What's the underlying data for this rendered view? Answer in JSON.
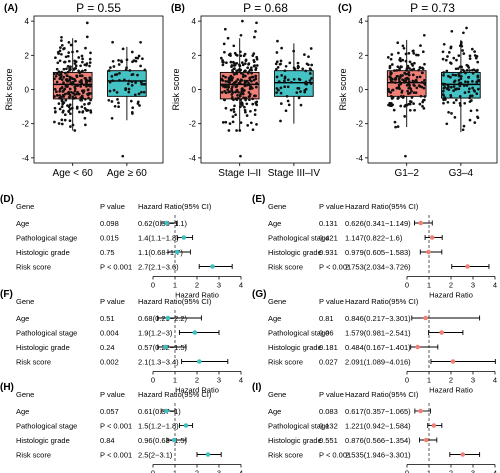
{
  "colors": {
    "box_left": "#F08077",
    "box_right": "#44C2C4",
    "forest_left": "#3FBFBF",
    "forest_right": "#F08077",
    "points": "#111111",
    "axis": "#000000",
    "refline": "#333333"
  },
  "chart_data": [
    {
      "panel": "A",
      "type": "box",
      "tag": "(A)",
      "title": "P = 0.55",
      "ylabel": "Risk score",
      "ylim": [
        -4.3,
        4.3
      ],
      "yticks": [
        -4,
        -2,
        0,
        2,
        4
      ],
      "categories": [
        "Age < 60",
        "Age ≥ 60"
      ],
      "boxes": [
        {
          "q1": -0.55,
          "median": 0.3,
          "q3": 1.0,
          "wlo": -2.4,
          "whi": 3.0
        },
        {
          "q1": -0.4,
          "median": 0.5,
          "q3": 1.1,
          "wlo": -1.8,
          "whi": 2.5
        }
      ],
      "n_points": [
        230,
        70
      ],
      "outliers": [
        [],
        [
          -3.9
        ]
      ]
    },
    {
      "panel": "B",
      "type": "box",
      "tag": "(B)",
      "title": "P = 0.68",
      "ylabel": "Risk score",
      "ylim": [
        -4.3,
        4.3
      ],
      "yticks": [
        -4,
        -2,
        0,
        2,
        4
      ],
      "categories": [
        "Stage I–II",
        "Stage III–IV"
      ],
      "boxes": [
        {
          "q1": -0.55,
          "median": 0.3,
          "q3": 1.0,
          "wlo": -2.4,
          "whi": 3.0
        },
        {
          "q1": -0.4,
          "median": 0.4,
          "q3": 1.1,
          "wlo": -2.0,
          "whi": 2.7
        }
      ],
      "n_points": [
        230,
        70
      ],
      "outliers": [
        [
          -3.9,
          4.0
        ],
        []
      ]
    },
    {
      "panel": "C",
      "type": "box",
      "tag": "(C)",
      "title": "P = 0.73",
      "ylabel": "Risk score",
      "ylim": [
        -4.3,
        4.3
      ],
      "yticks": [
        -4,
        -2,
        0,
        2,
        4
      ],
      "categories": [
        "G1–2",
        "G3–4"
      ],
      "boxes": [
        {
          "q1": -0.4,
          "median": 0.4,
          "q3": 1.1,
          "wlo": -2.2,
          "whi": 2.9
        },
        {
          "q1": -0.5,
          "median": 0.3,
          "q3": 1.0,
          "wlo": -2.5,
          "whi": 2.9
        }
      ],
      "n_points": [
        170,
        140
      ],
      "outliers": [
        [
          -3.9
        ],
        [
          3.6
        ]
      ]
    },
    {
      "panel": "D",
      "type": "forest",
      "tag": "(D)",
      "header": {
        "gene": "Gene",
        "p": "P value",
        "hr": "Hazard Ratio(95% CI)"
      },
      "xlabel": "Hazard Ratio",
      "xlim": [
        0,
        4
      ],
      "xticks": [
        0,
        1,
        2,
        3,
        4
      ],
      "refline": 1,
      "rows": [
        {
          "gene": "Age",
          "p": "0.098",
          "hr_text": "0.62(0.36−1.1)",
          "hr": 0.62,
          "lo": 0.36,
          "hi": 1.1
        },
        {
          "gene": "Pathological stage",
          "p": "0.015",
          "hr_text": "1.4(1.1−1.8)",
          "hr": 1.4,
          "lo": 1.1,
          "hi": 1.8
        },
        {
          "gene": "Histologic grade",
          "p": "0.75",
          "hr_text": "1.1(0.68−1.7)",
          "hr": 1.1,
          "lo": 0.68,
          "hi": 1.7
        },
        {
          "gene": "Risk score",
          "p": "P < 0.001",
          "hr_text": "2.7(2.1−3.6)",
          "hr": 2.7,
          "lo": 2.1,
          "hi": 3.6
        }
      ]
    },
    {
      "panel": "E",
      "type": "forest",
      "tag": "(E)",
      "header": {
        "gene": "Gene",
        "p": "P value",
        "hr": "Hazard Ratio(95% CI)"
      },
      "xlabel": "Hazard Ratio",
      "xlim": [
        0,
        4
      ],
      "xticks": [
        0,
        1,
        2,
        3,
        4
      ],
      "refline": 1,
      "rows": [
        {
          "gene": "Age",
          "p": "0.131",
          "hr_text": "0.626(0.341−1.149)",
          "hr": 0.626,
          "lo": 0.341,
          "hi": 1.149
        },
        {
          "gene": "Pathological stage",
          "p": "0.421",
          "hr_text": "1.147(0.822−1.6)",
          "hr": 1.147,
          "lo": 0.822,
          "hi": 1.6
        },
        {
          "gene": "Histologic grade",
          "p": "0.931",
          "hr_text": "0.979(0.605−1.583)",
          "hr": 0.979,
          "lo": 0.605,
          "hi": 1.583
        },
        {
          "gene": "Risk score",
          "p": "P < 0.001",
          "hr_text": "2.753(2.034−3.726)",
          "hr": 2.753,
          "lo": 2.034,
          "hi": 3.726
        }
      ]
    },
    {
      "panel": "F",
      "type": "forest",
      "tag": "(F)",
      "header": {
        "gene": "Gene",
        "p": "P value",
        "hr": "Hazard Ratio(95% CI)"
      },
      "xlabel": "Hazard Ratio",
      "xlim": [
        0,
        4
      ],
      "xticks": [
        0,
        1,
        2,
        3,
        4
      ],
      "refline": 1,
      "rows": [
        {
          "gene": "Age",
          "p": "0.51",
          "hr_text": "0.68(0.21−2.2)",
          "hr": 0.68,
          "lo": 0.21,
          "hi": 2.2
        },
        {
          "gene": "Pathological stage",
          "p": "0.004",
          "hr_text": "1.9(1.2−3)",
          "hr": 1.9,
          "lo": 1.2,
          "hi": 3.0
        },
        {
          "gene": "Histologic grade",
          "p": "0.24",
          "hr_text": "0.57(0.22−1.5)",
          "hr": 0.57,
          "lo": 0.22,
          "hi": 1.5
        },
        {
          "gene": "Risk score",
          "p": "0.002",
          "hr_text": "2.1(1.3−3.4)",
          "hr": 2.1,
          "lo": 1.3,
          "hi": 3.4
        }
      ]
    },
    {
      "panel": "G",
      "type": "forest",
      "tag": "(G)",
      "header": {
        "gene": "Gene",
        "p": "P value",
        "hr": "Hazard Ratio(95% CI)"
      },
      "xlabel": "Hazard Ratio",
      "xlim": [
        0,
        4
      ],
      "xticks": [
        0,
        1,
        2,
        3,
        4
      ],
      "refline": 1,
      "rows": [
        {
          "gene": "Age",
          "p": "0.81",
          "hr_text": "0.846(0.217−3.301)",
          "hr": 0.846,
          "lo": 0.217,
          "hi": 3.301
        },
        {
          "gene": "Pathological stage",
          "p": "0.06",
          "hr_text": "1.579(0.981−2.541)",
          "hr": 1.579,
          "lo": 0.981,
          "hi": 2.541
        },
        {
          "gene": "Histologic grade",
          "p": "0.181",
          "hr_text": "0.484(0.167−1.401)",
          "hr": 0.484,
          "lo": 0.167,
          "hi": 1.401
        },
        {
          "gene": "Risk score",
          "p": "0.027",
          "hr_text": "2.091(1.089−4.016)",
          "hr": 2.091,
          "lo": 1.089,
          "hi": 4.016
        }
      ]
    },
    {
      "panel": "H",
      "type": "forest",
      "tag": "(H)",
      "header": {
        "gene": "Gene",
        "p": "P value",
        "hr": "Hazard Ratio(95% CI)"
      },
      "xlabel": "Hazard Ratio",
      "xlim": [
        0,
        4
      ],
      "xticks": [
        0,
        1,
        2,
        3,
        4
      ],
      "refline": 1,
      "rows": [
        {
          "gene": "Age",
          "p": "0.057",
          "hr_text": "0.61(0.37−1)",
          "hr": 0.61,
          "lo": 0.37,
          "hi": 1.0
        },
        {
          "gene": "Pathological stage",
          "p": "P < 0.001",
          "hr_text": "1.5(1.2−1.8)",
          "hr": 1.5,
          "lo": 1.2,
          "hi": 1.8
        },
        {
          "gene": "Histologic grade",
          "p": "0.84",
          "hr_text": "0.96(0.63−1.5)",
          "hr": 0.96,
          "lo": 0.63,
          "hi": 1.5
        },
        {
          "gene": "Risk score",
          "p": "P < 0.001",
          "hr_text": "2.5(2−3.1)",
          "hr": 2.5,
          "lo": 2.0,
          "hi": 3.1
        }
      ]
    },
    {
      "panel": "I",
      "type": "forest",
      "tag": "(I)",
      "header": {
        "gene": "Gene",
        "p": "P value",
        "hr": "Hazard Ratio(95% CI)"
      },
      "xlabel": "Hazard Ratio",
      "xlim": [
        0,
        4
      ],
      "xticks": [
        0,
        1,
        2,
        3,
        4
      ],
      "refline": 1,
      "rows": [
        {
          "gene": "Age",
          "p": "0.083",
          "hr_text": "0.617(0.357−1.065)",
          "hr": 0.617,
          "lo": 0.357,
          "hi": 1.065
        },
        {
          "gene": "Pathological stage",
          "p": "0.132",
          "hr_text": "1.221(0.942−1.584)",
          "hr": 1.221,
          "lo": 0.942,
          "hi": 1.584
        },
        {
          "gene": "Histologic grade",
          "p": "0.551",
          "hr_text": "0.876(0.566−1.354)",
          "hr": 0.876,
          "lo": 0.566,
          "hi": 1.354
        },
        {
          "gene": "Risk score",
          "p": "P < 0.001",
          "hr_text": "2.535(1.946−3.301)",
          "hr": 2.535,
          "lo": 1.946,
          "hi": 3.301
        }
      ]
    }
  ]
}
